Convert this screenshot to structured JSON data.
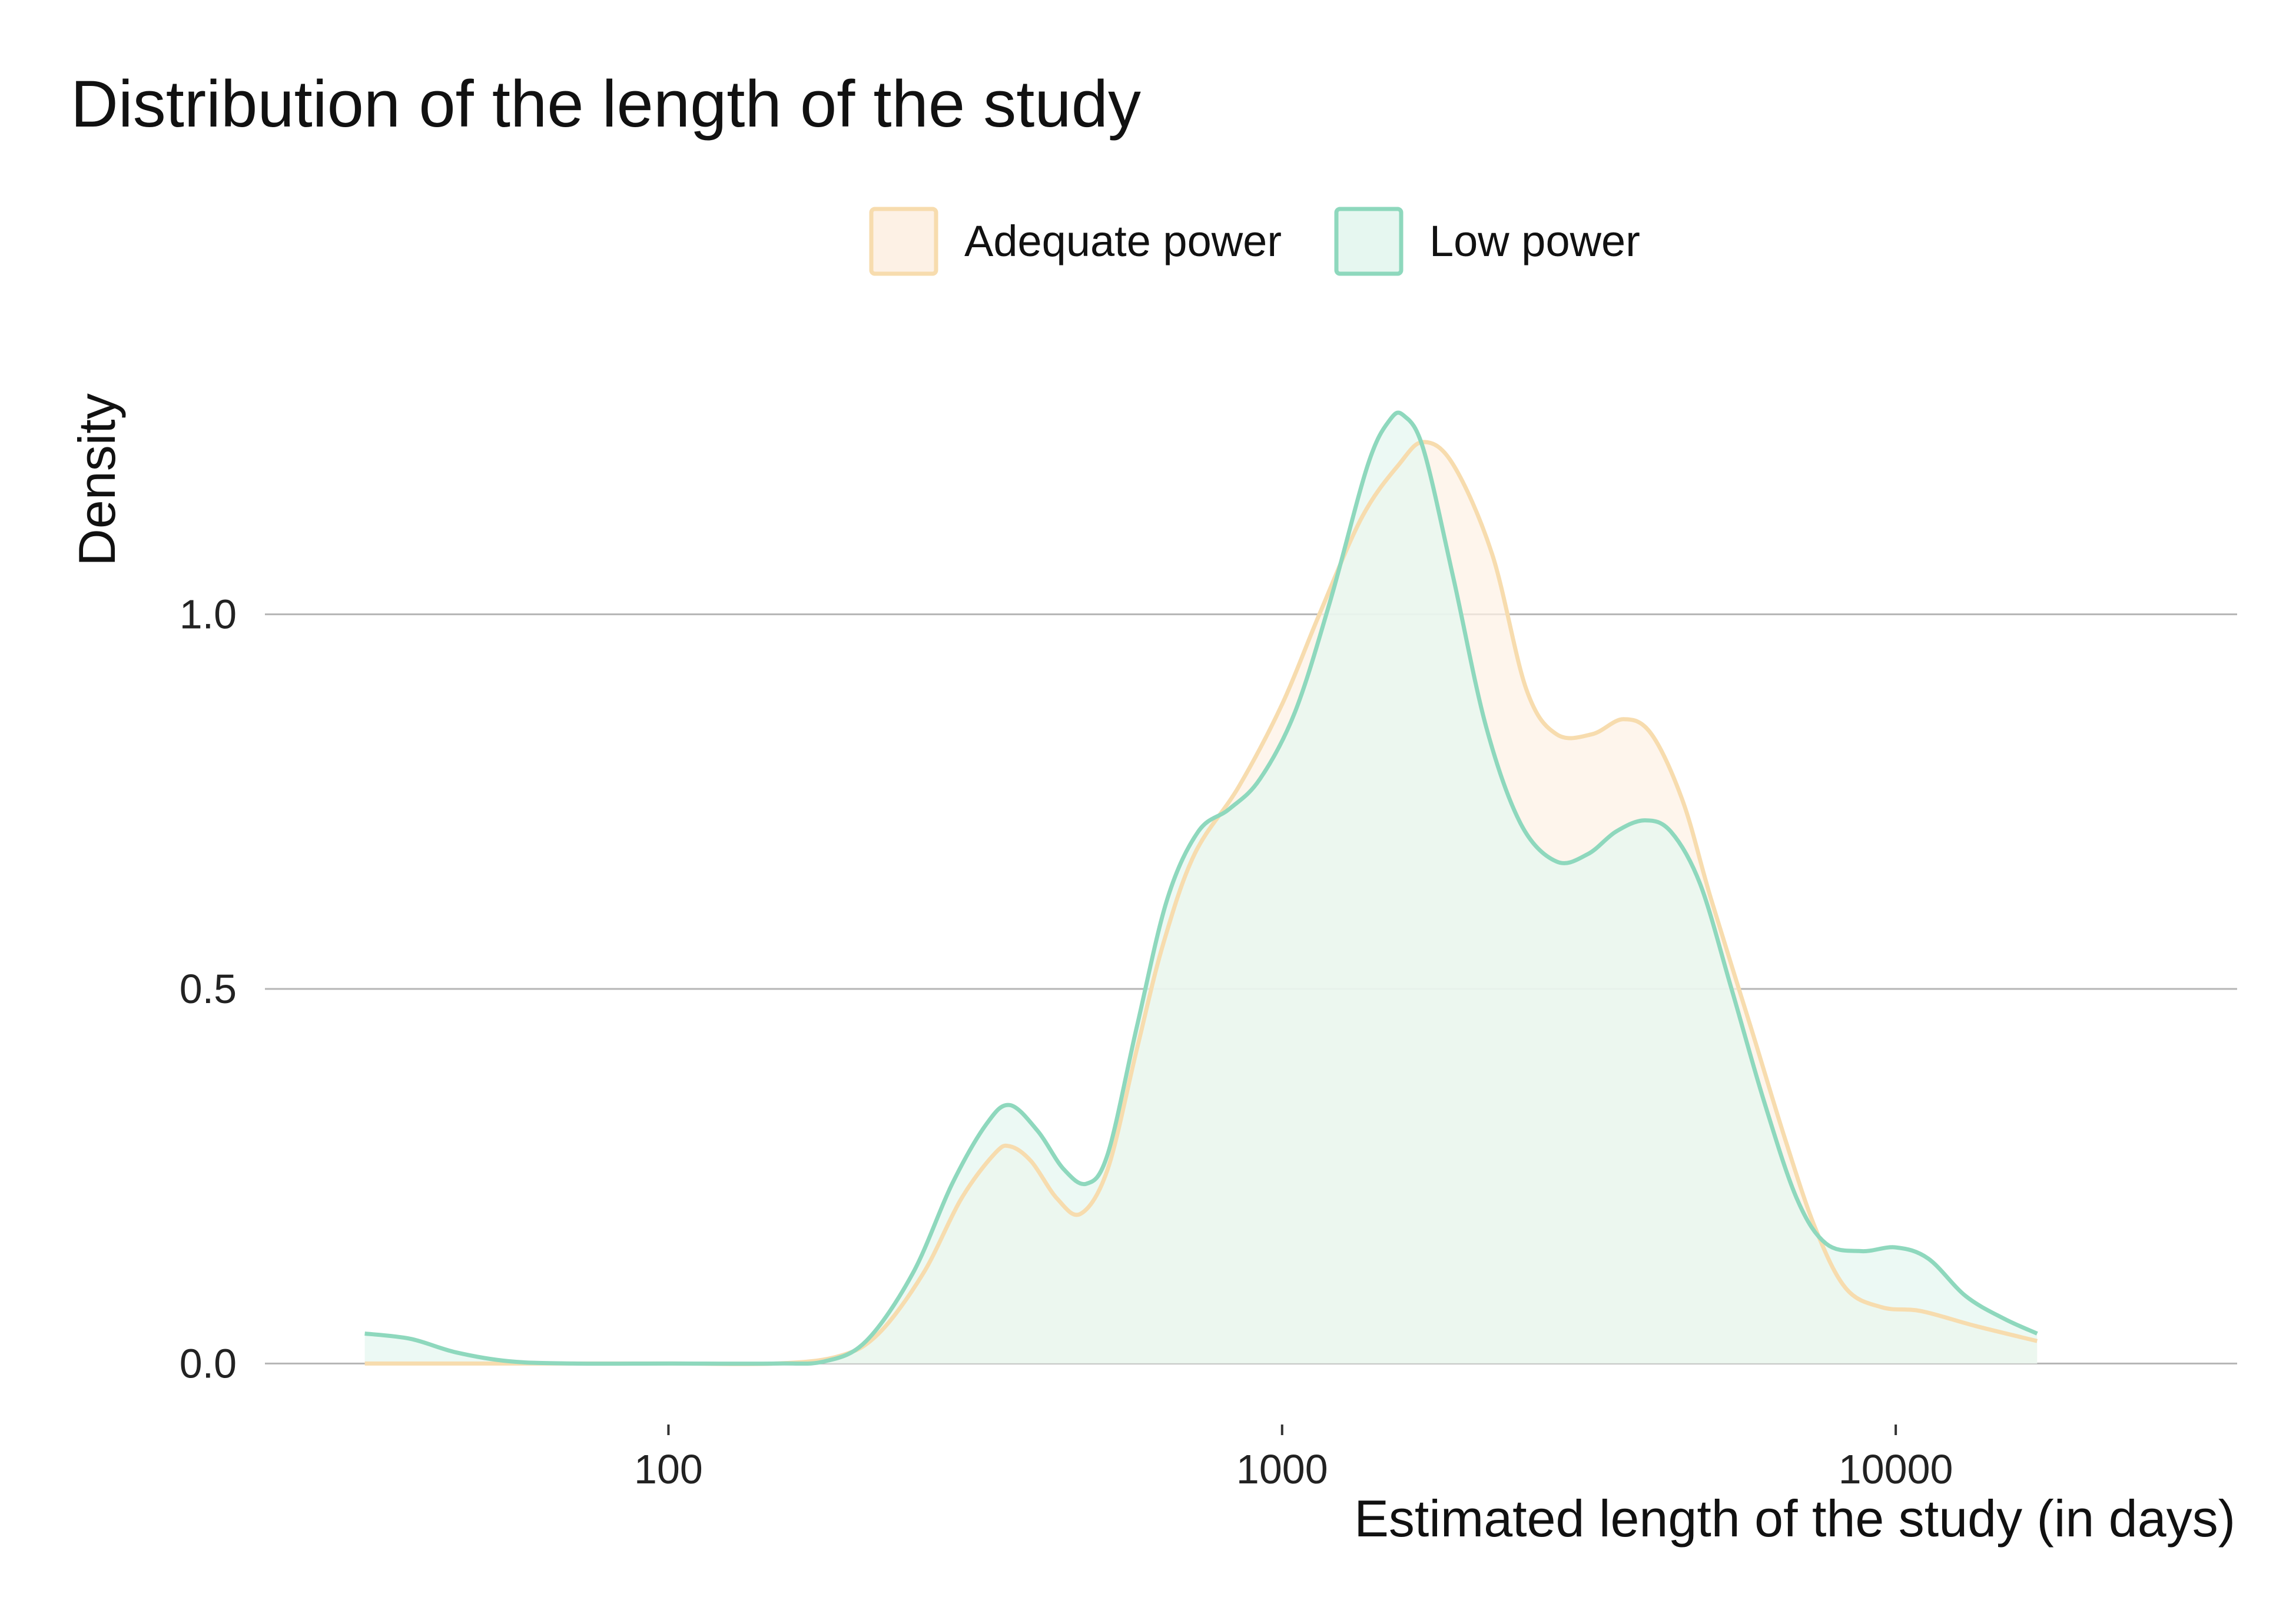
{
  "chart_data": {
    "type": "area",
    "title": "Distribution of the length of the study",
    "xlabel": "Estimated length of the study (in days)",
    "ylabel": "Density",
    "x_scale": "log10",
    "xlim": [
      22,
      36000
    ],
    "ylim": [
      -0.05,
      1.38
    ],
    "x_ticks": [
      {
        "value": 100,
        "label": "100"
      },
      {
        "value": 1000,
        "label": "1000"
      },
      {
        "value": 10000,
        "label": "10000"
      }
    ],
    "y_ticks": [
      {
        "value": 0,
        "label": "0.0"
      },
      {
        "value": 0.5,
        "label": "0.5"
      },
      {
        "value": 1,
        "label": "1.0"
      }
    ],
    "grid": "horizontal",
    "legend": "top",
    "series": [
      {
        "name": "Adequate power",
        "color": "#f7dcae",
        "fill": "#fdf1e5",
        "points": [
          [
            32,
            0
          ],
          [
            50,
            0
          ],
          [
            100,
            0
          ],
          [
            150,
            0
          ],
          [
            190,
            0.01
          ],
          [
            220,
            0.04
          ],
          [
            260,
            0.12
          ],
          [
            300,
            0.22
          ],
          [
            340,
            0.28
          ],
          [
            360,
            0.29
          ],
          [
            390,
            0.27
          ],
          [
            430,
            0.22
          ],
          [
            470,
            0.2
          ],
          [
            520,
            0.26
          ],
          [
            580,
            0.42
          ],
          [
            640,
            0.56
          ],
          [
            720,
            0.68
          ],
          [
            850,
            0.77
          ],
          [
            1000,
            0.88
          ],
          [
            1150,
            1.0
          ],
          [
            1350,
            1.13
          ],
          [
            1550,
            1.2
          ],
          [
            1700,
            1.23
          ],
          [
            1900,
            1.2
          ],
          [
            2200,
            1.08
          ],
          [
            2500,
            0.9
          ],
          [
            2800,
            0.84
          ],
          [
            3200,
            0.84
          ],
          [
            3600,
            0.86
          ],
          [
            4000,
            0.84
          ],
          [
            4500,
            0.75
          ],
          [
            5000,
            0.62
          ],
          [
            5800,
            0.45
          ],
          [
            6600,
            0.3
          ],
          [
            7400,
            0.18
          ],
          [
            8300,
            0.1
          ],
          [
            9500,
            0.075
          ],
          [
            11000,
            0.07
          ],
          [
            13500,
            0.05
          ],
          [
            17000,
            0.03
          ]
        ]
      },
      {
        "name": "Low power",
        "color": "#8ed8bd",
        "fill": "#e6f7f0",
        "points": [
          [
            32,
            0.04
          ],
          [
            38,
            0.033
          ],
          [
            45,
            0.015
          ],
          [
            55,
            0.003
          ],
          [
            70,
            0
          ],
          [
            100,
            0
          ],
          [
            150,
            0
          ],
          [
            180,
            0.003
          ],
          [
            210,
            0.03
          ],
          [
            250,
            0.12
          ],
          [
            290,
            0.24
          ],
          [
            330,
            0.32
          ],
          [
            360,
            0.345
          ],
          [
            400,
            0.31
          ],
          [
            440,
            0.26
          ],
          [
            480,
            0.24
          ],
          [
            520,
            0.28
          ],
          [
            580,
            0.45
          ],
          [
            650,
            0.62
          ],
          [
            730,
            0.71
          ],
          [
            820,
            0.74
          ],
          [
            920,
            0.78
          ],
          [
            1050,
            0.87
          ],
          [
            1200,
            1.02
          ],
          [
            1380,
            1.2
          ],
          [
            1500,
            1.26
          ],
          [
            1580,
            1.265
          ],
          [
            1700,
            1.22
          ],
          [
            1900,
            1.05
          ],
          [
            2150,
            0.85
          ],
          [
            2450,
            0.72
          ],
          [
            2800,
            0.67
          ],
          [
            3150,
            0.68
          ],
          [
            3500,
            0.71
          ],
          [
            3900,
            0.725
          ],
          [
            4300,
            0.71
          ],
          [
            4800,
            0.64
          ],
          [
            5400,
            0.5
          ],
          [
            6100,
            0.35
          ],
          [
            6900,
            0.22
          ],
          [
            7700,
            0.16
          ],
          [
            8800,
            0.15
          ],
          [
            10000,
            0.155
          ],
          [
            11300,
            0.14
          ],
          [
            13000,
            0.09
          ],
          [
            15000,
            0.06
          ],
          [
            17000,
            0.04
          ]
        ]
      }
    ]
  }
}
